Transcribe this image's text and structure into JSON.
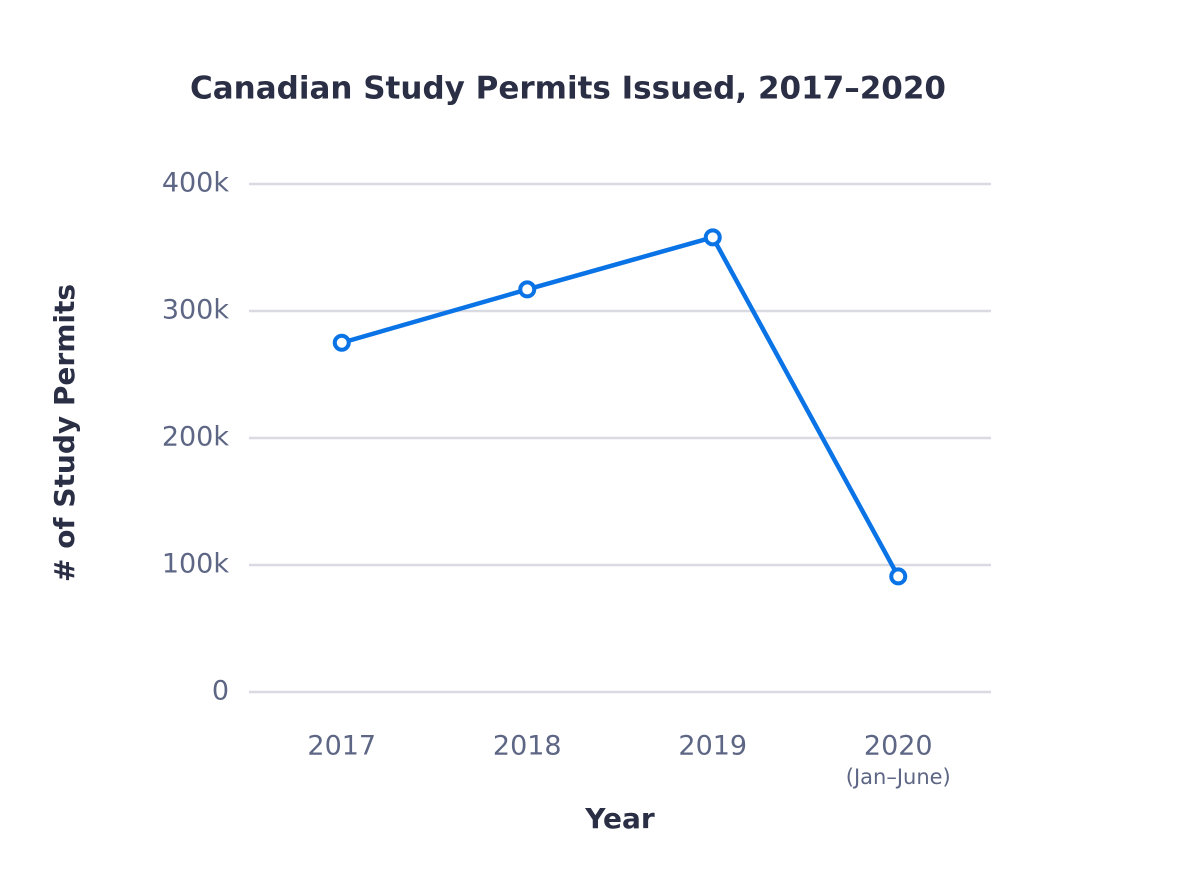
{
  "chart_data": {
    "type": "line",
    "title": "Canadian Study Permits Issued, 2017–2020",
    "x_label": "Year",
    "y_label": "# of Study Permits",
    "categories": [
      "2017",
      "2018",
      "2019",
      "2020"
    ],
    "x_sublabels": [
      null,
      null,
      null,
      "(Jan–June)"
    ],
    "values": [
      275000,
      317000,
      358000,
      91000
    ],
    "color": "#0a74e6",
    "ylim": [
      0,
      400000
    ],
    "yticks": [
      0,
      {
        "value": 100000,
        "label": "100k"
      },
      {
        "value": 200000,
        "label": "200k"
      },
      {
        "value": 300000,
        "label": "300k"
      },
      {
        "value": 400000,
        "label": "400k"
      }
    ],
    "grid": true
  }
}
